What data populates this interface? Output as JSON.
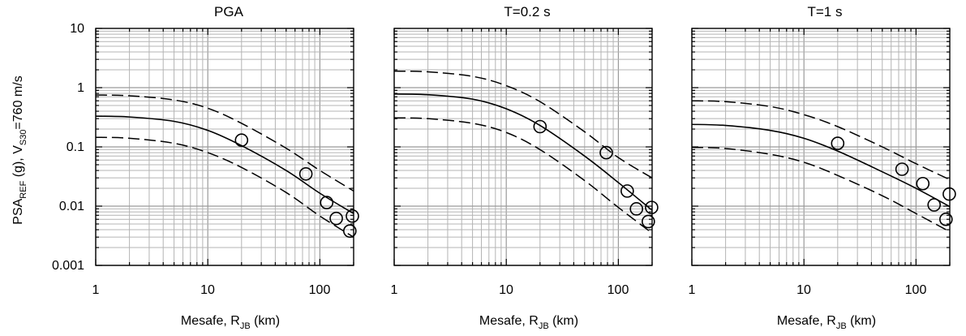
{
  "figure": {
    "ylabel": {
      "main": "PSA",
      "sub1": "REF",
      "mid": " (g), V",
      "sub2": "S30",
      "tail": "=760 m/s"
    },
    "xlabel": {
      "main": "Mesafe, R",
      "sub": "JB",
      "tail": " (km)"
    },
    "ytick_labels": [
      "10",
      "1",
      "0.1",
      "0.01",
      "0.001"
    ],
    "xtick_labels": [
      "1",
      "10",
      "100"
    ]
  },
  "chart_data": [
    {
      "type": "line",
      "title": "PGA",
      "xscale": "log",
      "yscale": "log",
      "xlim": [
        1,
        200
      ],
      "ylim": [
        0.001,
        10
      ],
      "grid": true,
      "xlabel": "Mesafe, RJB (km)",
      "ylabel": "PSAREF (g), VS30=760 m/s",
      "x": [
        1,
        2,
        5,
        10,
        20,
        50,
        100,
        200
      ],
      "series": [
        {
          "style": "solid",
          "values": [
            0.33,
            0.32,
            0.27,
            0.19,
            0.105,
            0.04,
            0.0165,
            0.0075
          ]
        },
        {
          "style": "dashed",
          "values": [
            0.75,
            0.73,
            0.62,
            0.45,
            0.25,
            0.095,
            0.04,
            0.018
          ]
        },
        {
          "style": "dashed",
          "values": [
            0.145,
            0.14,
            0.115,
            0.08,
            0.045,
            0.017,
            0.0068,
            0.003
          ]
        },
        {
          "style": "markers",
          "points": [
            [
              20,
              0.13
            ],
            [
              75,
              0.035
            ],
            [
              115,
              0.0115
            ],
            [
              140,
              0.0062
            ],
            [
              185,
              0.0038
            ],
            [
              195,
              0.0068
            ]
          ]
        }
      ]
    },
    {
      "type": "line",
      "title": "T=0.2 s",
      "xscale": "log",
      "yscale": "log",
      "xlim": [
        1,
        200
      ],
      "ylim": [
        0.001,
        10
      ],
      "grid": true,
      "xlabel": "Mesafe, RJB (km)",
      "ylabel": "PSAREF (g), VS30=760 m/s",
      "x": [
        1,
        2,
        5,
        10,
        20,
        50,
        100,
        200
      ],
      "series": [
        {
          "style": "solid",
          "values": [
            0.78,
            0.76,
            0.64,
            0.44,
            0.23,
            0.07,
            0.025,
            0.0085
          ]
        },
        {
          "style": "dashed",
          "values": [
            1.9,
            1.85,
            1.55,
            1.08,
            0.58,
            0.18,
            0.066,
            0.03
          ]
        },
        {
          "style": "dashed",
          "values": [
            0.31,
            0.3,
            0.25,
            0.175,
            0.09,
            0.027,
            0.0095,
            0.0035
          ]
        },
        {
          "style": "markers",
          "points": [
            [
              20,
              0.22
            ],
            [
              78,
              0.08
            ],
            [
              120,
              0.018
            ],
            [
              145,
              0.009
            ],
            [
              185,
              0.0055
            ],
            [
              198,
              0.0095
            ]
          ]
        }
      ]
    },
    {
      "type": "line",
      "title": "T=1 s",
      "xscale": "log",
      "yscale": "log",
      "xlim": [
        1,
        200
      ],
      "ylim": [
        0.001,
        10
      ],
      "grid": true,
      "xlabel": "Mesafe, RJB (km)",
      "ylabel": "PSAREF (g), VS30=760 m/s",
      "x": [
        1,
        2,
        5,
        10,
        20,
        50,
        100,
        200
      ],
      "series": [
        {
          "style": "solid",
          "values": [
            0.24,
            0.23,
            0.19,
            0.14,
            0.085,
            0.038,
            0.02,
            0.0098
          ]
        },
        {
          "style": "dashed",
          "values": [
            0.6,
            0.58,
            0.48,
            0.35,
            0.22,
            0.1,
            0.052,
            0.028
          ]
        },
        {
          "style": "dashed",
          "values": [
            0.098,
            0.094,
            0.075,
            0.055,
            0.033,
            0.015,
            0.0075,
            0.0037
          ]
        },
        {
          "style": "markers",
          "points": [
            [
              20,
              0.115
            ],
            [
              75,
              0.042
            ],
            [
              115,
              0.024
            ],
            [
              145,
              0.0105
            ],
            [
              185,
              0.006
            ],
            [
              198,
              0.016
            ]
          ]
        }
      ]
    }
  ]
}
